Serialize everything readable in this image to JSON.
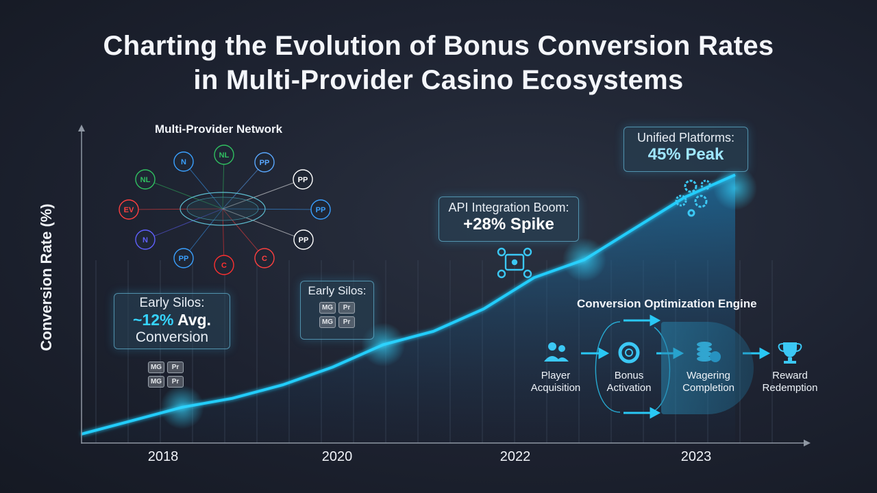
{
  "title_line1": "Charting the Evolution of Bonus Conversion Rates",
  "title_line2": "in Multi-Provider Casino Ecosystems",
  "network": {
    "title": "Multi-Provider Network",
    "nodes": [
      "NL",
      "PP",
      "PP",
      "PP",
      "PP",
      "NL",
      "EV",
      "N",
      "PP",
      "C"
    ]
  },
  "callouts": {
    "early1_line1": "Early Silos:",
    "early1_value": "~12%",
    "early1_rest": " Avg.",
    "early1_line3": "Conversion",
    "early2_line1": "Early Silos:",
    "api_line1": "API Integration Boom:",
    "api_line2": "+28% Spike",
    "unified_line1": "Unified Platforms:",
    "unified_line2": "45% Peak"
  },
  "silo_badges": [
    "MG",
    "Pr",
    "MG",
    "Pr"
  ],
  "engine": {
    "title": "Conversion Optimization Engine",
    "steps": [
      {
        "line1": "Player",
        "line2": "Acquisition",
        "icon": "users-icon"
      },
      {
        "line1": "Bonus",
        "line2": "Activation",
        "icon": "lifebuoy-icon"
      },
      {
        "line1": "Wagering",
        "line2": "Completion",
        "icon": "coins-icon"
      },
      {
        "line1": "Reward",
        "line2": "Redemption",
        "icon": "trophy-icon"
      }
    ]
  },
  "chart_data": {
    "type": "area",
    "title": "Charting the Evolution of Bonus Conversion Rates in Multi-Provider Casino Ecosystems",
    "xlabel": "",
    "ylabel": "Conversion Rate (%)",
    "x_ticks": [
      "2018",
      "2020",
      "2022",
      "2023"
    ],
    "series": [
      {
        "x": [
          2017.0,
          2017.5,
          2018.0,
          2018.5,
          2019.0,
          2019.5,
          2020.0,
          2020.5,
          2021.0,
          2021.5,
          2022.0,
          2022.5,
          2023.0,
          2023.5
        ],
        "values": [
          2,
          5,
          8,
          10,
          13,
          17,
          22,
          25,
          30,
          37,
          41,
          48,
          55,
          60
        ]
      }
    ],
    "ylim": [
      0,
      70
    ],
    "grid": true,
    "accent": "#1ec8ff"
  }
}
